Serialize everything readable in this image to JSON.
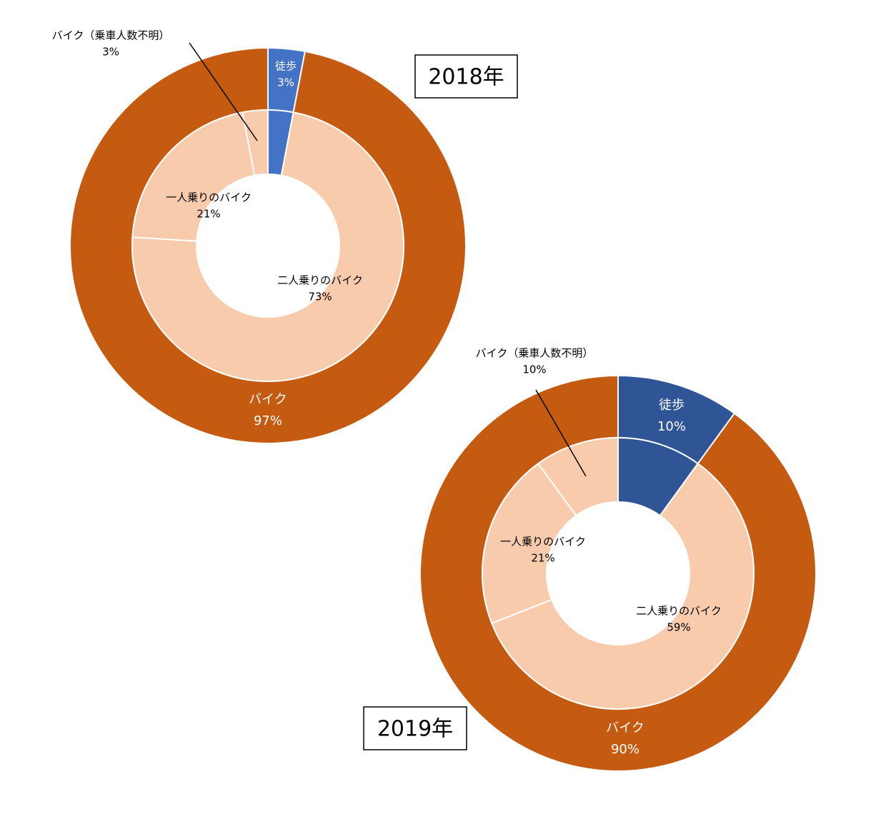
{
  "chart_data": [
    {
      "type": "nested-donut",
      "title": "2018年",
      "outer": {
        "categories": [
          "徒歩",
          "バイク"
        ],
        "values": [
          3,
          97
        ],
        "value_labels": [
          "3%",
          "97%"
        ],
        "colors": [
          "#4472c4",
          "#c55a11"
        ]
      },
      "inner": {
        "categories": [
          null,
          "二人乗りのバイク",
          "一人乗りのバイク",
          "バイク（乗車人数不明）"
        ],
        "values": [
          3,
          73,
          21,
          3
        ],
        "value_labels": [
          null,
          "73%",
          "21%",
          "3%"
        ],
        "colors": [
          "#4472c4",
          "#f8cbad",
          "#f8cbad",
          "#f8cbad"
        ]
      }
    },
    {
      "type": "nested-donut",
      "title": "2019年",
      "outer": {
        "categories": [
          "徒歩",
          "バイク"
        ],
        "values": [
          10,
          90
        ],
        "value_labels": [
          "10%",
          "90%"
        ],
        "colors": [
          "#2f5597",
          "#c55a11"
        ]
      },
      "inner": {
        "categories": [
          null,
          "二人乗りのバイク",
          "一人乗りのバイク",
          "バイク（乗車人数不明）"
        ],
        "values": [
          10,
          59,
          21,
          10
        ],
        "value_labels": [
          null,
          "59%",
          "21%",
          "10%"
        ],
        "colors": [
          "#2f5597",
          "#f8cbad",
          "#f8cbad",
          "#f8cbad"
        ]
      }
    }
  ]
}
